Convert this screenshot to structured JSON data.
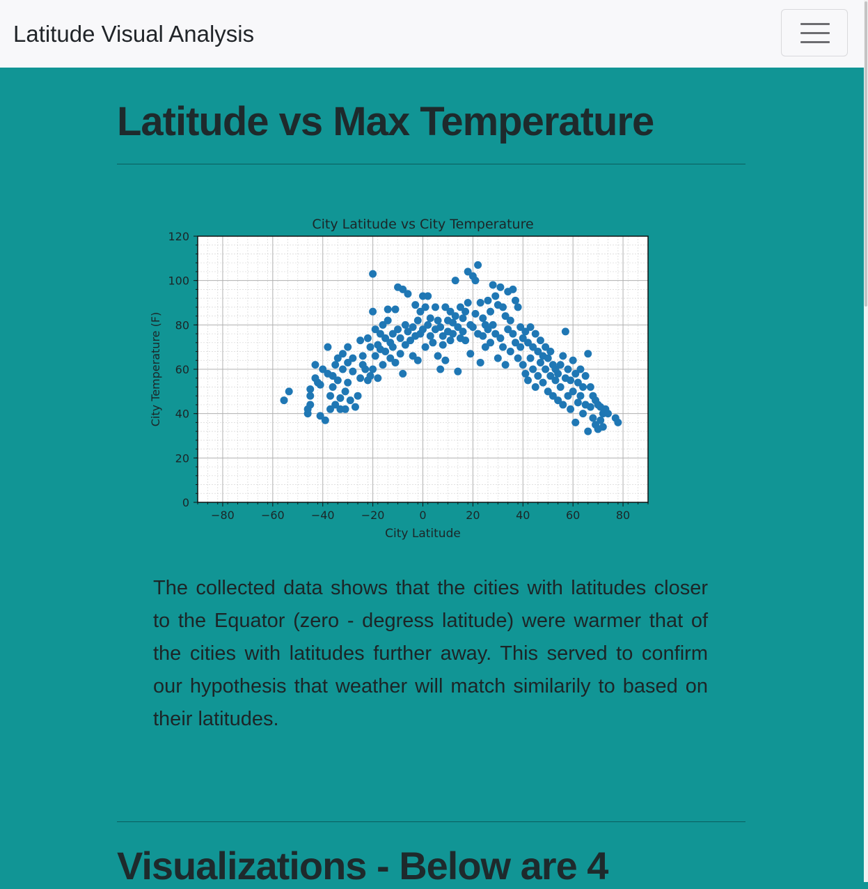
{
  "navbar": {
    "brand": "Latitude Visual Analysis",
    "toggle_icon": "hamburger-menu-icon"
  },
  "main": {
    "title": "Latitude vs Max Temperature",
    "description": "The collected data shows that the cities with latitudes closer to the Equator (zero - degress latitude) were warmer that of the cities with latitudes further away. This served to confirm our hypothesis that weather will match similarily to based on their latitudes.",
    "next_section_title": "Visualizations - Below are 4"
  },
  "colors": {
    "navbar_bg": "#f8f8fa",
    "page_bg": "#119595",
    "marker": "#1f77b4"
  },
  "chart_data": {
    "type": "scatter",
    "title": "City Latitude vs City Temperature",
    "xlabel": "City Latitude",
    "ylabel": "City Temperature (F)",
    "xlim": [
      -90,
      90
    ],
    "ylim": [
      0,
      120
    ],
    "xticks": [
      -80,
      -60,
      -40,
      -20,
      0,
      20,
      40,
      60,
      80
    ],
    "yticks": [
      0,
      20,
      40,
      60,
      80,
      100,
      120
    ],
    "grid": "major and minor",
    "marker_color": "#1f77b4",
    "points": [
      [
        -55.5,
        46
      ],
      [
        -53.5,
        50
      ],
      [
        -46,
        40
      ],
      [
        -46,
        42
      ],
      [
        -45,
        44
      ],
      [
        -45,
        51
      ],
      [
        -45,
        48
      ],
      [
        -43,
        62
      ],
      [
        -43,
        56
      ],
      [
        -42,
        54
      ],
      [
        -41,
        53
      ],
      [
        -41,
        39
      ],
      [
        -40,
        60
      ],
      [
        -39,
        37
      ],
      [
        -38,
        58
      ],
      [
        -38,
        70
      ],
      [
        -37,
        42
      ],
      [
        -37,
        48
      ],
      [
        -36,
        52
      ],
      [
        -36,
        57
      ],
      [
        -35,
        44
      ],
      [
        -35,
        62
      ],
      [
        -34,
        55
      ],
      [
        -34,
        65
      ],
      [
        -33,
        42
      ],
      [
        -33,
        47
      ],
      [
        -32,
        60
      ],
      [
        -32,
        67
      ],
      [
        -31,
        50
      ],
      [
        -31,
        42
      ],
      [
        -30,
        63
      ],
      [
        -30,
        54
      ],
      [
        -30,
        70
      ],
      [
        -29,
        46
      ],
      [
        -28,
        65
      ],
      [
        -28,
        59
      ],
      [
        -27,
        43
      ],
      [
        -26,
        48
      ],
      [
        -25,
        73
      ],
      [
        -25,
        56
      ],
      [
        -24,
        62
      ],
      [
        -24,
        66
      ],
      [
        -23,
        60
      ],
      [
        -22,
        55
      ],
      [
        -22,
        74
      ],
      [
        -21,
        70
      ],
      [
        -21,
        57
      ],
      [
        -20,
        103
      ],
      [
        -20,
        86
      ],
      [
        -20,
        60
      ],
      [
        -19,
        78
      ],
      [
        -19,
        66
      ],
      [
        -18,
        71
      ],
      [
        -18,
        56
      ],
      [
        -17,
        76
      ],
      [
        -17,
        69
      ],
      [
        -16,
        80
      ],
      [
        -16,
        62
      ],
      [
        -15,
        74
      ],
      [
        -15,
        68
      ],
      [
        -14,
        87
      ],
      [
        -14,
        82
      ],
      [
        -13,
        65
      ],
      [
        -13,
        72
      ],
      [
        -12,
        76
      ],
      [
        -12,
        70
      ],
      [
        -11,
        87
      ],
      [
        -11,
        63
      ],
      [
        -10,
        97
      ],
      [
        -10,
        78
      ],
      [
        -9,
        67
      ],
      [
        -9,
        74
      ],
      [
        -8,
        96
      ],
      [
        -8,
        58
      ],
      [
        -7,
        80
      ],
      [
        -7,
        71
      ],
      [
        -6,
        94
      ],
      [
        -6,
        77
      ],
      [
        -5,
        73
      ],
      [
        -4,
        79
      ],
      [
        -4,
        66
      ],
      [
        -3,
        89
      ],
      [
        -3,
        75
      ],
      [
        -2,
        82
      ],
      [
        -2,
        64
      ],
      [
        -1,
        86
      ],
      [
        -1,
        76
      ],
      [
        0,
        93
      ],
      [
        0,
        78
      ],
      [
        1,
        88
      ],
      [
        1,
        70
      ],
      [
        2,
        93
      ],
      [
        2,
        80
      ],
      [
        3,
        75
      ],
      [
        3,
        83
      ],
      [
        4,
        72
      ],
      [
        5,
        88
      ],
      [
        5,
        78
      ],
      [
        6,
        82
      ],
      [
        6,
        66
      ],
      [
        7,
        79
      ],
      [
        7,
        60
      ],
      [
        8,
        75
      ],
      [
        8,
        71
      ],
      [
        9,
        88
      ],
      [
        9,
        64
      ],
      [
        10,
        82
      ],
      [
        10,
        77
      ],
      [
        11,
        86
      ],
      [
        11,
        73
      ],
      [
        12,
        81
      ],
      [
        12,
        76
      ],
      [
        13,
        100
      ],
      [
        13,
        84
      ],
      [
        14,
        79
      ],
      [
        14,
        59
      ],
      [
        15,
        88
      ],
      [
        15,
        74
      ],
      [
        16,
        83
      ],
      [
        16,
        77
      ],
      [
        17,
        86
      ],
      [
        17,
        73
      ],
      [
        18,
        104
      ],
      [
        18,
        90
      ],
      [
        19,
        80
      ],
      [
        19,
        67
      ],
      [
        20,
        102
      ],
      [
        20,
        79
      ],
      [
        21,
        100
      ],
      [
        21,
        85
      ],
      [
        22,
        107
      ],
      [
        22,
        76
      ],
      [
        23,
        90
      ],
      [
        23,
        63
      ],
      [
        24,
        83
      ],
      [
        24,
        75
      ],
      [
        25,
        80
      ],
      [
        25,
        70
      ],
      [
        26,
        91
      ],
      [
        26,
        78
      ],
      [
        27,
        86
      ],
      [
        27,
        72
      ],
      [
        28,
        98
      ],
      [
        28,
        80
      ],
      [
        29,
        93
      ],
      [
        29,
        76
      ],
      [
        30,
        89
      ],
      [
        30,
        65
      ],
      [
        31,
        97
      ],
      [
        31,
        74
      ],
      [
        32,
        88
      ],
      [
        32,
        70
      ],
      [
        33,
        84
      ],
      [
        33,
        62
      ],
      [
        34,
        95
      ],
      [
        34,
        78
      ],
      [
        35,
        82
      ],
      [
        35,
        68
      ],
      [
        36,
        96
      ],
      [
        36,
        76
      ],
      [
        37,
        91
      ],
      [
        37,
        72
      ],
      [
        38,
        88
      ],
      [
        38,
        65
      ],
      [
        39,
        79
      ],
      [
        39,
        70
      ],
      [
        40,
        74
      ],
      [
        40,
        62
      ],
      [
        41,
        77
      ],
      [
        41,
        58
      ],
      [
        42,
        72
      ],
      [
        42,
        55
      ],
      [
        43,
        79
      ],
      [
        43,
        65
      ],
      [
        44,
        70
      ],
      [
        44,
        60
      ],
      [
        45,
        76
      ],
      [
        45,
        52
      ],
      [
        46,
        68
      ],
      [
        46,
        57
      ],
      [
        47,
        73
      ],
      [
        47,
        63
      ],
      [
        48,
        66
      ],
      [
        48,
        54
      ],
      [
        49,
        70
      ],
      [
        49,
        60
      ],
      [
        50,
        65
      ],
      [
        50,
        50
      ],
      [
        51,
        68
      ],
      [
        51,
        57
      ],
      [
        52,
        62
      ],
      [
        52,
        48
      ],
      [
        53,
        60
      ],
      [
        53,
        55
      ],
      [
        54,
        58
      ],
      [
        54,
        46
      ],
      [
        55,
        62
      ],
      [
        55,
        52
      ],
      [
        56,
        66
      ],
      [
        56,
        44
      ],
      [
        57,
        77
      ],
      [
        57,
        56
      ],
      [
        58,
        60
      ],
      [
        58,
        48
      ],
      [
        59,
        55
      ],
      [
        59,
        42
      ],
      [
        60,
        64
      ],
      [
        60,
        50
      ],
      [
        61,
        58
      ],
      [
        61,
        36
      ],
      [
        62,
        54
      ],
      [
        62,
        45
      ],
      [
        63,
        60
      ],
      [
        63,
        48
      ],
      [
        64,
        52
      ],
      [
        64,
        40
      ],
      [
        65,
        57
      ],
      [
        65,
        44
      ],
      [
        66,
        67
      ],
      [
        66,
        32
      ],
      [
        67,
        52
      ],
      [
        67,
        43
      ],
      [
        68,
        48
      ],
      [
        68,
        38
      ],
      [
        69,
        46
      ],
      [
        69,
        35
      ],
      [
        70,
        44
      ],
      [
        70,
        33
      ],
      [
        71,
        43
      ],
      [
        71,
        37
      ],
      [
        72,
        40
      ],
      [
        72,
        34
      ],
      [
        73,
        42
      ],
      [
        74,
        40
      ],
      [
        77,
        38
      ],
      [
        78,
        36
      ]
    ]
  }
}
